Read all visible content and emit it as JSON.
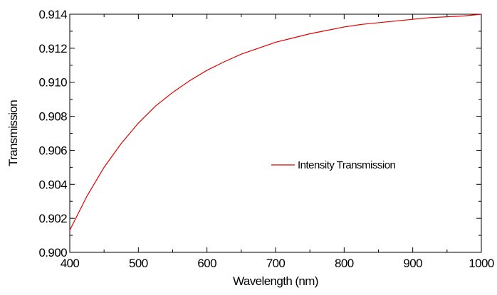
{
  "chart_data": {
    "type": "line",
    "title": "",
    "xlabel": "Wavelength (nm)",
    "ylabel": "Transmission",
    "xlim": [
      400,
      1000
    ],
    "ylim": [
      0.9,
      0.914
    ],
    "x_ticks": [
      400,
      500,
      600,
      700,
      800,
      900,
      1000
    ],
    "y_ticks": [
      0.9,
      0.902,
      0.904,
      0.906,
      0.908,
      0.91,
      0.912,
      0.914
    ],
    "x_tick_labels": [
      "400",
      "500",
      "600",
      "700",
      "800",
      "900",
      "1000"
    ],
    "y_tick_labels": [
      "0.900",
      "0.902",
      "0.904",
      "0.906",
      "0.908",
      "0.910",
      "0.912",
      "0.914"
    ],
    "grid": false,
    "legend_position": "center-right",
    "series": [
      {
        "name": "Intensity Transmission",
        "color": "#e00000",
        "x": [
          400,
          425,
          450,
          475,
          500,
          525,
          550,
          575,
          600,
          625,
          650,
          675,
          700,
          725,
          750,
          775,
          800,
          825,
          850,
          875,
          900,
          925,
          950,
          975,
          1000
        ],
        "y": [
          0.9013,
          0.9033,
          0.905,
          0.9064,
          0.9076,
          0.9086,
          0.9094,
          0.9101,
          0.9107,
          0.9112,
          0.91165,
          0.912,
          0.91235,
          0.9126,
          0.91285,
          0.91305,
          0.91325,
          0.9134,
          0.9135,
          0.9136,
          0.9137,
          0.9138,
          0.91385,
          0.9139,
          0.914
        ]
      }
    ]
  }
}
